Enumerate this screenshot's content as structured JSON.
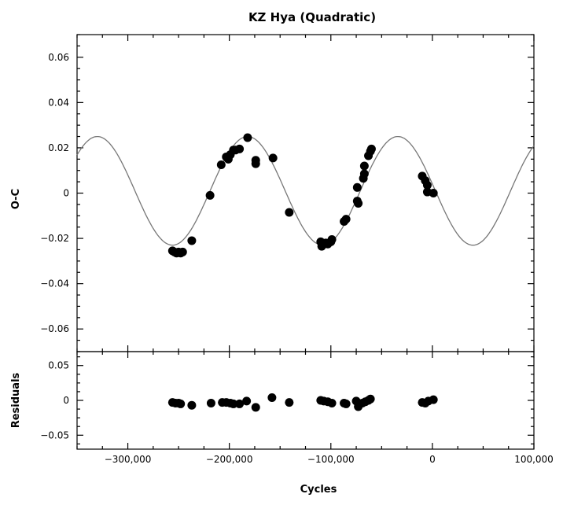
{
  "chart_data": {
    "type": "scatter",
    "title": "KZ Hya (Quadratic)",
    "xlabel": "Cycles",
    "x_ticks": [
      -300000,
      -200000,
      -100000,
      0,
      100000
    ],
    "x_tick_labels": [
      "−300,000",
      "−200,000",
      "−100,000",
      "0",
      "100,000"
    ],
    "xlim": [
      -350000,
      100000
    ],
    "panels": [
      {
        "name": "O-C",
        "ylabel": "O-C",
        "ylim": [
          -0.07,
          0.07
        ],
        "y_ticks": [
          -0.06,
          -0.04,
          -0.02,
          0,
          0.02,
          0.04,
          0.06
        ],
        "y_tick_labels": [
          "−0.06",
          "−0.04",
          "−0.02",
          "0",
          "0.02",
          "0.04",
          "0.06"
        ],
        "fit_curve": {
          "type": "sinusoid",
          "amplitude": 0.024,
          "offset": 0.001,
          "period": 148000,
          "peak_cycle": -182000
        },
        "points": [
          [
            -256000,
            -0.0255
          ],
          [
            -254000,
            -0.026
          ],
          [
            -252000,
            -0.0265
          ],
          [
            -250000,
            -0.026
          ],
          [
            -248000,
            -0.0265
          ],
          [
            -246000,
            -0.026
          ],
          [
            -237000,
            -0.021
          ],
          [
            -219000,
            -0.001
          ],
          [
            -208000,
            0.0125
          ],
          [
            -203000,
            0.016
          ],
          [
            -201000,
            0.015
          ],
          [
            -199000,
            0.017
          ],
          [
            -196000,
            0.019
          ],
          [
            -194000,
            0.019
          ],
          [
            -190000,
            0.0195
          ],
          [
            -182000,
            0.0245
          ],
          [
            -174000,
            0.0145
          ],
          [
            -174000,
            0.013
          ],
          [
            -157000,
            0.0155
          ],
          [
            -141000,
            -0.0085
          ],
          [
            -110000,
            -0.0215
          ],
          [
            -109000,
            -0.0235
          ],
          [
            -105000,
            -0.022
          ],
          [
            -103000,
            -0.0225
          ],
          [
            -100000,
            -0.0215
          ],
          [
            -99000,
            -0.0205
          ],
          [
            -87000,
            -0.0125
          ],
          [
            -85000,
            -0.0115
          ],
          [
            -74000,
            0.0025
          ],
          [
            -74000,
            -0.0035
          ],
          [
            -73000,
            -0.0045
          ],
          [
            -68000,
            0.0065
          ],
          [
            -67000,
            0.0085
          ],
          [
            -67000,
            0.012
          ],
          [
            -63000,
            0.0165
          ],
          [
            -61000,
            0.0185
          ],
          [
            -60000,
            0.0195
          ],
          [
            -10000,
            0.0075
          ],
          [
            -7000,
            0.0055
          ],
          [
            -5000,
            0.0035
          ],
          [
            -5000,
            0.0005
          ],
          [
            1000,
            0.0
          ]
        ]
      },
      {
        "name": "Residuals",
        "ylabel": "Residuals",
        "ylim": [
          -0.07,
          0.07
        ],
        "y_ticks": [
          -0.05,
          0,
          0.05
        ],
        "y_tick_labels": [
          "−0.05",
          "0",
          "0.05"
        ],
        "points": [
          [
            -256000,
            -0.003
          ],
          [
            -253000,
            -0.004
          ],
          [
            -250000,
            -0.004
          ],
          [
            -248000,
            -0.005
          ],
          [
            -237000,
            -0.007
          ],
          [
            -218000,
            -0.004
          ],
          [
            -207000,
            -0.003
          ],
          [
            -203000,
            -0.003
          ],
          [
            -199000,
            -0.004
          ],
          [
            -196000,
            -0.005
          ],
          [
            -190000,
            -0.005
          ],
          [
            -183000,
            -0.001
          ],
          [
            -174000,
            -0.01
          ],
          [
            -158000,
            0.004
          ],
          [
            -141000,
            -0.003
          ],
          [
            -110000,
            0.0
          ],
          [
            -107000,
            -0.001
          ],
          [
            -103000,
            -0.002
          ],
          [
            -99000,
            -0.004
          ],
          [
            -87000,
            -0.004
          ],
          [
            -85000,
            -0.005
          ],
          [
            -75000,
            -0.001
          ],
          [
            -73000,
            -0.009
          ],
          [
            -69000,
            -0.004
          ],
          [
            -66000,
            -0.002
          ],
          [
            -63000,
            0.0
          ],
          [
            -61000,
            0.002
          ],
          [
            -10000,
            -0.003
          ],
          [
            -7000,
            -0.004
          ],
          [
            -4000,
            -0.001
          ],
          [
            1000,
            0.001
          ]
        ]
      }
    ]
  }
}
